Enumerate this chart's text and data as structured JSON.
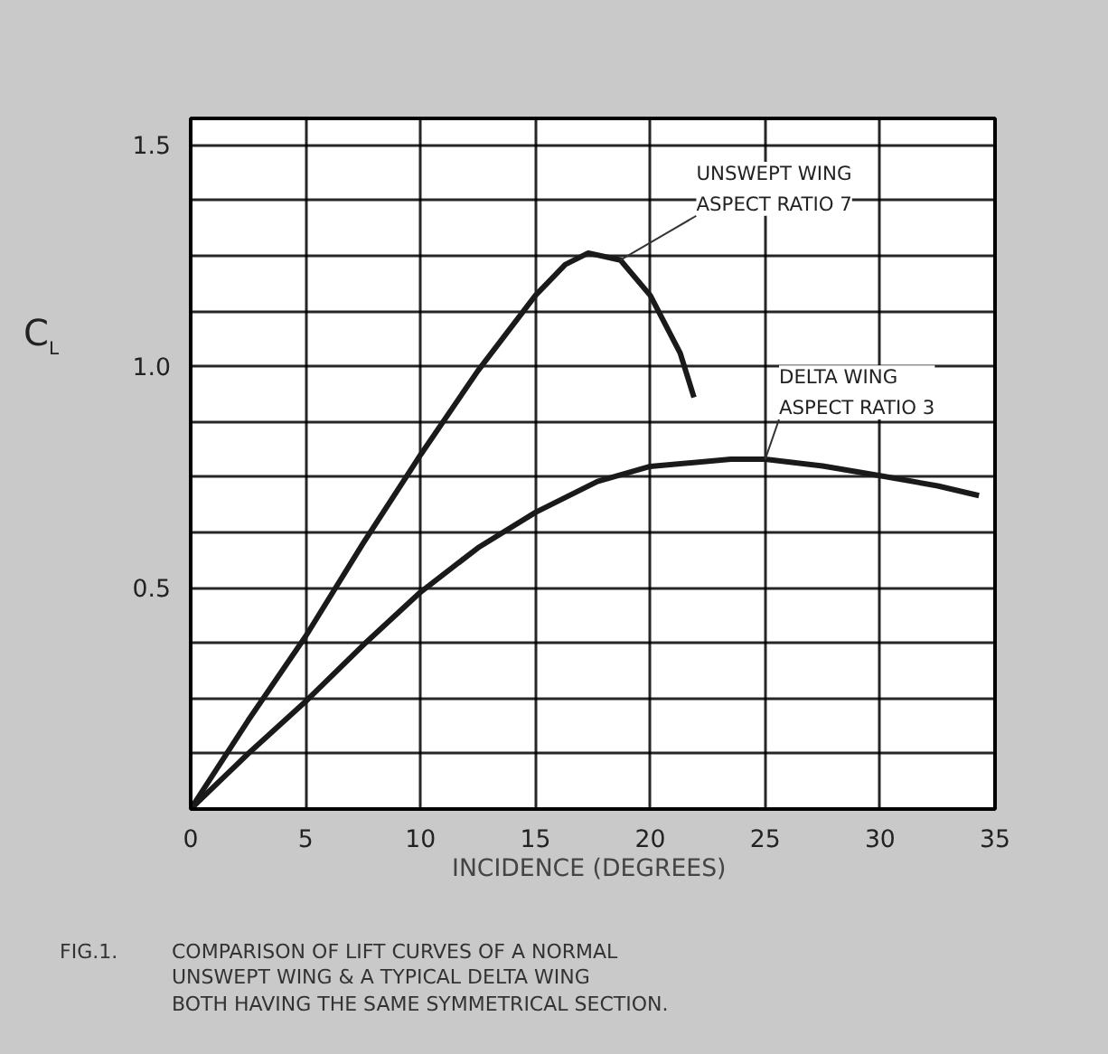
{
  "chart_data": {
    "type": "line",
    "xlabel": "INCIDENCE  (DEGREES)",
    "ylabel": "C$_{L}$",
    "xlim": [
      0,
      35
    ],
    "ylim": [
      0,
      1.56
    ],
    "xticks": [
      0,
      5,
      10,
      15,
      20,
      25,
      30,
      35
    ],
    "yticks": [
      {
        "value": 0,
        "label": null
      },
      {
        "value": 0.125,
        "label": null
      },
      {
        "value": 0.25,
        "label": null
      },
      {
        "value": 0.375,
        "label": null
      },
      {
        "value": 0.5,
        "label": "0.5"
      },
      {
        "value": 0.625,
        "label": null
      },
      {
        "value": 0.75,
        "label": null
      },
      {
        "value": 0.875,
        "label": null
      },
      {
        "value": 1.0,
        "label": "1.0"
      },
      {
        "value": 1.125,
        "label": null
      },
      {
        "value": 1.25,
        "label": null
      },
      {
        "value": 1.375,
        "label": null
      },
      {
        "value": 1.5,
        "label": "1.5"
      }
    ],
    "grid": true,
    "marker": "none",
    "line_style": "solid",
    "series": [
      {
        "name": "UNSWEPT WING\nASPECT RATIO 7",
        "color": "#1a1a1a",
        "x": [
          0,
          2.5,
          5,
          7.5,
          10,
          12.5,
          15,
          16.3,
          17.3,
          18.7,
          20,
          21.3,
          21.9
        ],
        "values": [
          0,
          0.2,
          0.39,
          0.6,
          0.8,
          0.99,
          1.16,
          1.23,
          1.256,
          1.24,
          1.16,
          1.03,
          0.93
        ]
      },
      {
        "name": "DELTA WING\nASPECT RATIO 3",
        "color": "#1a1a1a",
        "x": [
          0,
          2.5,
          5,
          7.5,
          10,
          12.5,
          15,
          17.7,
          20,
          23.5,
          25,
          27.5,
          30,
          32.5,
          34.3
        ],
        "values": [
          0,
          0.125,
          0.243,
          0.37,
          0.49,
          0.59,
          0.67,
          0.74,
          0.774,
          0.79,
          0.79,
          0.775,
          0.753,
          0.73,
          0.708
        ]
      }
    ],
    "annotations": [
      "FIG.1.",
      "COMPARISON OF LIFT CURVES OF A NORMAL\nUNSWEPT WING & A TYPICAL DELTA WING\nBOTH HAVING THE SAME SYMMETRICAL SECTION."
    ]
  }
}
